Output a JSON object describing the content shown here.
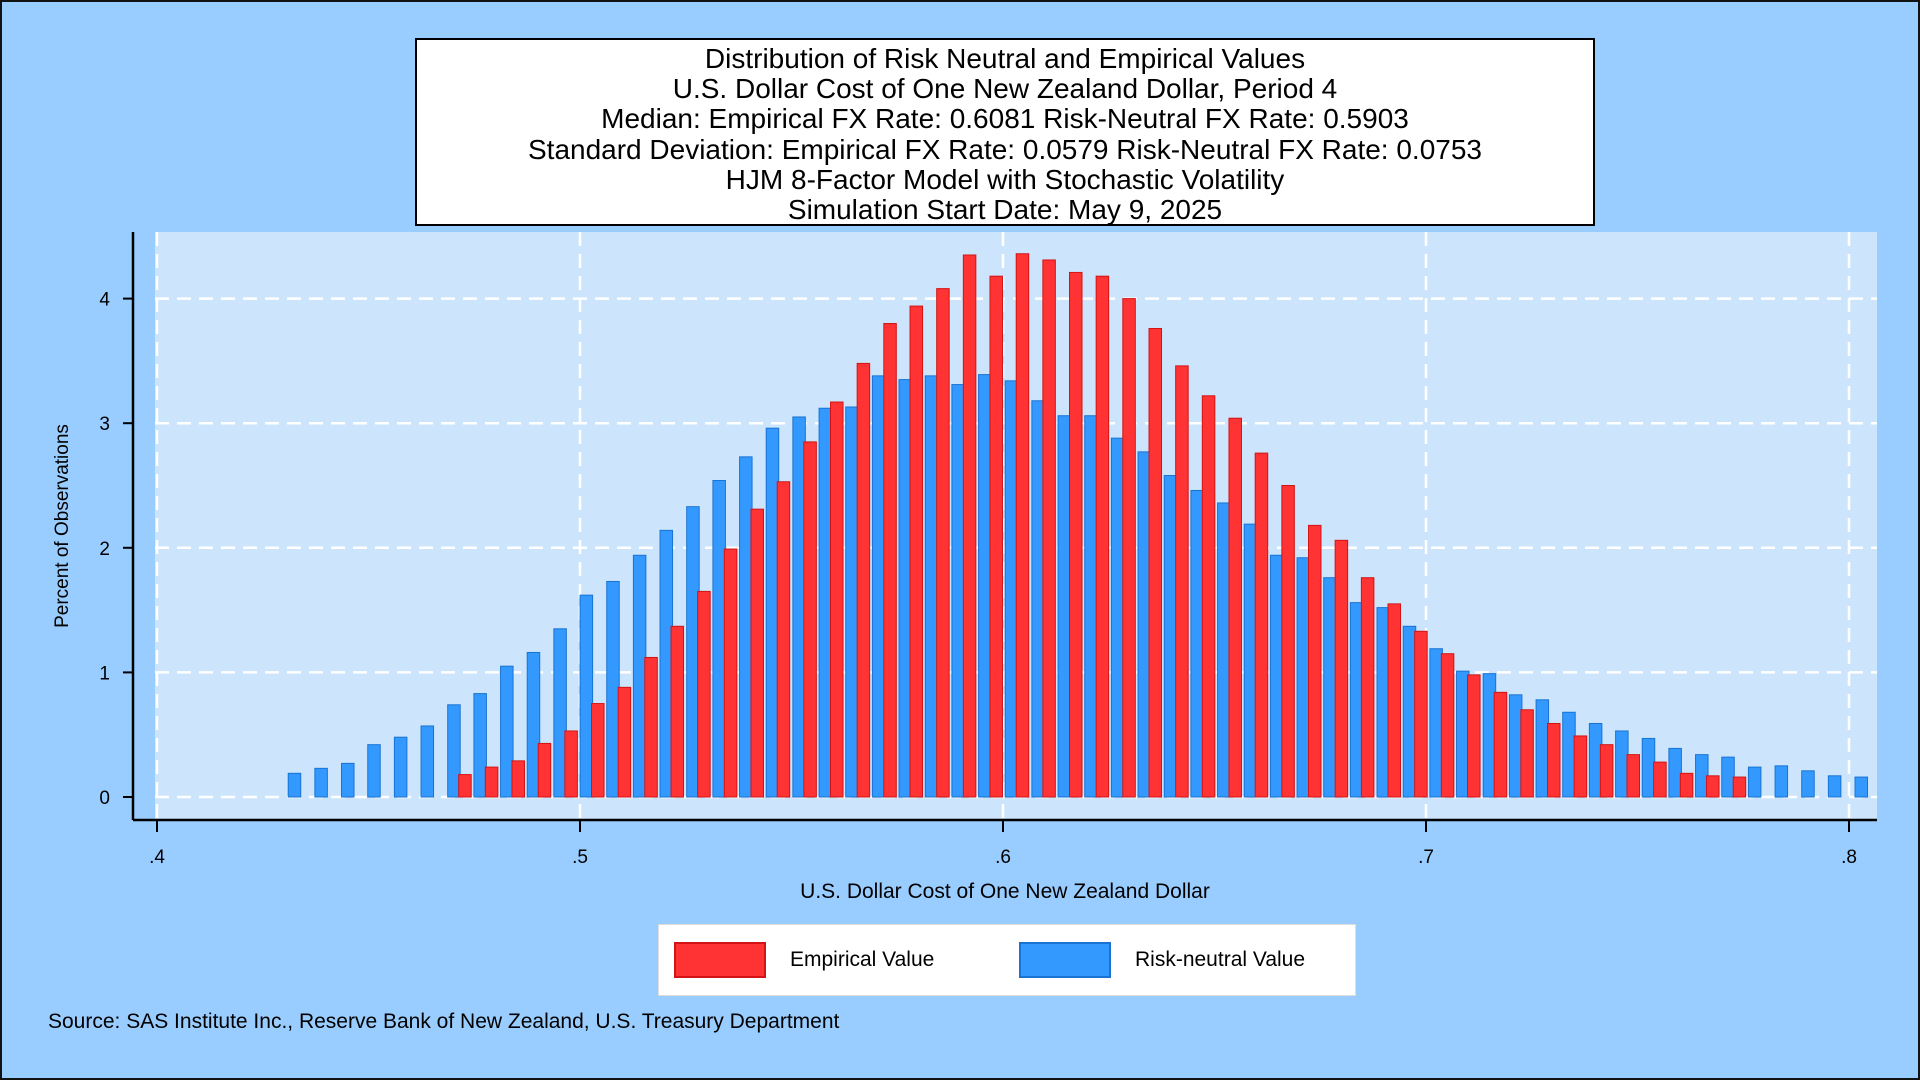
{
  "title_lines": [
    "Distribution of Risk Neutral and Empirical Values",
    "U.S. Dollar Cost of One New Zealand Dollar, Period 4",
    "Median: Empirical FX Rate:  0.6081   Risk-Neutral FX Rate:  0.5903",
    "Standard Deviation: Empirical FX Rate:  0.0579   Risk-Neutral FX Rate:  0.0753",
    "HJM 8-Factor Model with Stochastic Volatility",
    "Simulation Start Date: May 9, 2025"
  ],
  "source_note": "Source: SAS Institute Inc., Reserve Bank of New Zealand, U.S. Treasury Department",
  "legend": {
    "empirical_label": "Empirical Value",
    "risk_neutral_label": "Risk-neutral Value"
  },
  "colors": {
    "empirical": "#ff3333",
    "empirical_edge": "#d21414",
    "risk_neutral": "#3399ff",
    "risk_neutral_edge": "#1a73d1",
    "background": "#99ccff",
    "plot_area": "#cce5fc"
  },
  "chart_data": {
    "type": "bar",
    "xlabel": "U.S. Dollar Cost of One New Zealand Dollar",
    "ylabel": "Percent of Observations",
    "xlim": [
      0.4,
      0.8
    ],
    "ylim": [
      0,
      4.4
    ],
    "x_ticks": [
      0.4,
      0.5,
      0.6,
      0.7,
      0.8
    ],
    "x_tick_labels": [
      ".4",
      ".5",
      ".6",
      ".7",
      ".8"
    ],
    "y_ticks": [
      0,
      1,
      2,
      3,
      4
    ],
    "y_tick_labels": [
      "0",
      "1",
      "2",
      "3",
      "4"
    ],
    "grid": true,
    "legend_position": "bottom",
    "series": [
      {
        "name": "Empirical Value",
        "x": [
          0.4728,
          0.4791,
          0.4854,
          0.4916,
          0.4979,
          0.5042,
          0.5105,
          0.5168,
          0.523,
          0.5293,
          0.5356,
          0.5419,
          0.5481,
          0.5544,
          0.5607,
          0.567,
          0.5733,
          0.5795,
          0.5858,
          0.5921,
          0.5984,
          0.6046,
          0.6109,
          0.6172,
          0.6235,
          0.6298,
          0.636,
          0.6423,
          0.6486,
          0.6549,
          0.6611,
          0.6674,
          0.6737,
          0.68,
          0.6862,
          0.6925,
          0.6988,
          0.7051,
          0.7113,
          0.7176,
          0.7239,
          0.7302,
          0.7365,
          0.7427,
          0.749,
          0.7553,
          0.7616,
          0.7678,
          0.7741
        ],
        "values": [
          0.18,
          0.24,
          0.29,
          0.43,
          0.53,
          0.75,
          0.88,
          1.12,
          1.37,
          1.65,
          1.99,
          2.31,
          2.53,
          2.85,
          3.17,
          3.48,
          3.8,
          3.94,
          4.08,
          4.35,
          4.18,
          4.36,
          4.31,
          4.21,
          4.18,
          4.0,
          3.76,
          3.46,
          3.22,
          3.04,
          2.76,
          2.5,
          2.18,
          2.06,
          1.76,
          1.55,
          1.33,
          1.15,
          0.98,
          0.84,
          0.7,
          0.59,
          0.49,
          0.42,
          0.34,
          0.28,
          0.19,
          0.17,
          0.16
        ]
      },
      {
        "name": "Risk-neutral Value",
        "x": [
          0.4325,
          0.4388,
          0.4451,
          0.4513,
          0.4576,
          0.4639,
          0.4702,
          0.4764,
          0.4827,
          0.489,
          0.4953,
          0.5015,
          0.5078,
          0.5141,
          0.5204,
          0.5267,
          0.5329,
          0.5392,
          0.5455,
          0.5518,
          0.558,
          0.5643,
          0.5706,
          0.5769,
          0.5831,
          0.5894,
          0.5957,
          0.602,
          0.6083,
          0.6145,
          0.6208,
          0.6271,
          0.6334,
          0.6396,
          0.6459,
          0.6522,
          0.6585,
          0.6647,
          0.671,
          0.6773,
          0.6836,
          0.6899,
          0.6961,
          0.7024,
          0.7087,
          0.715,
          0.7212,
          0.7275,
          0.7338,
          0.7401,
          0.7463,
          0.7526,
          0.7589,
          0.7652,
          0.7714,
          0.7777,
          0.784,
          0.7903,
          0.7966
        ],
        "values": [
          0.19,
          0.23,
          0.27,
          0.42,
          0.48,
          0.57,
          0.74,
          0.83,
          1.05,
          1.16,
          1.35,
          1.62,
          1.73,
          1.94,
          2.14,
          2.33,
          2.54,
          2.73,
          2.96,
          3.05,
          3.12,
          3.13,
          3.38,
          3.35,
          3.38,
          3.31,
          3.39,
          3.34,
          3.18,
          3.06,
          3.06,
          2.88,
          2.77,
          2.58,
          2.46,
          2.36,
          2.19,
          1.94,
          1.92,
          1.76,
          1.56,
          1.52,
          1.37,
          1.19,
          1.01,
          0.99,
          0.82,
          0.78,
          0.68,
          0.59,
          0.53,
          0.47,
          0.39,
          0.34,
          0.32,
          0.24,
          0.25,
          0.21,
          0.17
        ]
      }
    ],
    "extra_risk_neutral_bar": {
      "x": 0.8029,
      "value": 0.16
    }
  }
}
